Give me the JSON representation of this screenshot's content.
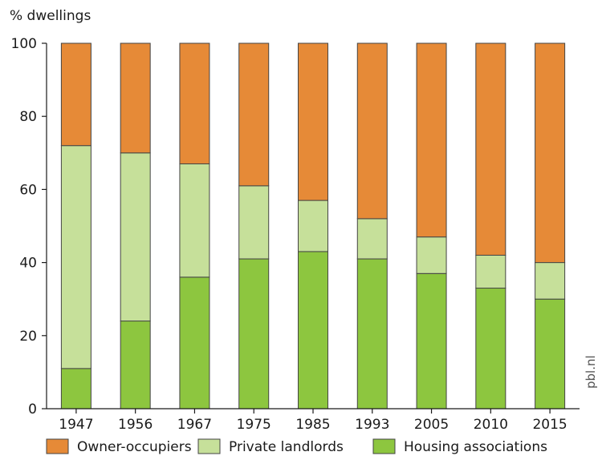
{
  "chart_data": {
    "type": "bar",
    "stacked": true,
    "ylabel": "% dwellings",
    "ylim": [
      0,
      100
    ],
    "yticks": [
      0,
      20,
      40,
      60,
      80,
      100
    ],
    "categories": [
      "1947",
      "1956",
      "1967",
      "1975",
      "1985",
      "1993",
      "2005",
      "2010",
      "2015"
    ],
    "series": [
      {
        "name": "Housing associations",
        "color": "#8dc63f",
        "values": [
          11,
          24,
          36,
          41,
          43,
          41,
          37,
          33,
          30
        ]
      },
      {
        "name": "Private landlords",
        "color": "#c6e09a",
        "values": [
          61,
          46,
          31,
          20,
          14,
          11,
          10,
          9,
          10
        ]
      },
      {
        "name": "Owner-occupiers",
        "color": "#e68a37",
        "values": [
          28,
          30,
          33,
          39,
          43,
          48,
          53,
          58,
          60
        ]
      }
    ],
    "legend_order": [
      "Owner-occupiers",
      "Private landlords",
      "Housing associations"
    ],
    "legend_position": "bottom",
    "grid": false,
    "source": "pbl.nl"
  }
}
